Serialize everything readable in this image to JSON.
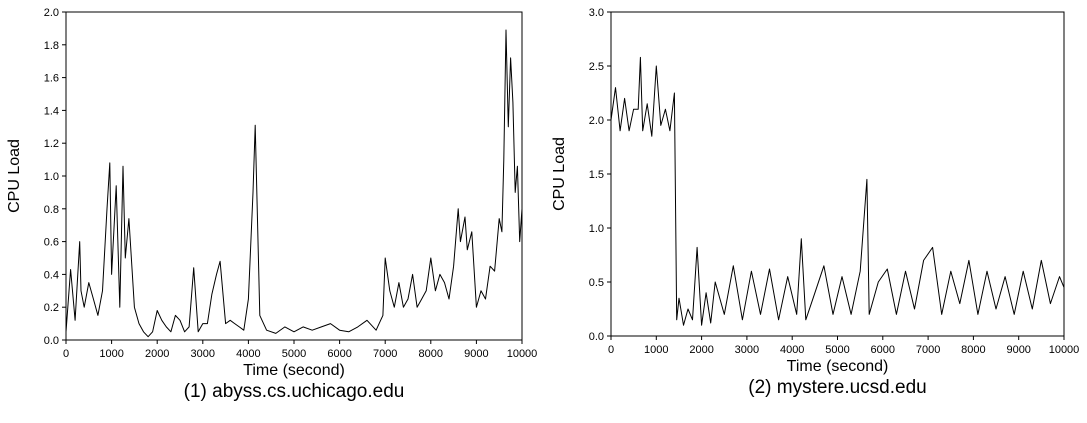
{
  "chart_data": [
    {
      "type": "line",
      "caption": "(1) abyss.cs.uchicago.edu",
      "xlabel": "Time (second)",
      "ylabel": "CPU Load",
      "xlim": [
        0,
        10000
      ],
      "ylim": [
        0,
        2.0
      ],
      "xticks": [
        0,
        1000,
        2000,
        3000,
        4000,
        5000,
        6000,
        7000,
        8000,
        9000,
        10000
      ],
      "yticks": [
        "0.0",
        "0.2",
        "0.4",
        "0.6",
        "0.8",
        "1.0",
        "1.2",
        "1.4",
        "1.6",
        "1.8",
        "2.0"
      ],
      "grid": false,
      "line_color": "#000000",
      "series": [
        {
          "x": [
            0,
            100,
            200,
            300,
            330,
            400,
            500,
            600,
            700,
            800,
            900,
            960,
            1000,
            1100,
            1180,
            1250,
            1300,
            1380,
            1500,
            1600,
            1700,
            1800,
            1900,
            2000,
            2100,
            2200,
            2300,
            2400,
            2500,
            2600,
            2700,
            2800,
            2900,
            3000,
            3100,
            3200,
            3300,
            3380,
            3500,
            3600,
            3700,
            3800,
            3900,
            4000,
            4100,
            4150,
            4250,
            4400,
            4600,
            4800,
            5000,
            5200,
            5400,
            5600,
            5800,
            6000,
            6200,
            6400,
            6600,
            6800,
            6950,
            7000,
            7100,
            7200,
            7300,
            7400,
            7500,
            7600,
            7700,
            7800,
            7900,
            8000,
            8100,
            8200,
            8300,
            8400,
            8500,
            8600,
            8650,
            8750,
            8800,
            8900,
            9000,
            9100,
            9200,
            9300,
            9400,
            9500,
            9560,
            9600,
            9650,
            9700,
            9750,
            9800,
            9850,
            9900,
            9950,
            10000
          ],
          "y": [
            0.05,
            0.43,
            0.12,
            0.6,
            0.3,
            0.2,
            0.35,
            0.25,
            0.15,
            0.3,
            0.8,
            1.08,
            0.4,
            0.94,
            0.2,
            1.06,
            0.5,
            0.74,
            0.2,
            0.1,
            0.05,
            0.02,
            0.05,
            0.18,
            0.12,
            0.08,
            0.05,
            0.15,
            0.12,
            0.05,
            0.08,
            0.44,
            0.05,
            0.1,
            0.1,
            0.28,
            0.4,
            0.48,
            0.1,
            0.12,
            0.1,
            0.08,
            0.06,
            0.25,
            0.9,
            1.31,
            0.15,
            0.06,
            0.04,
            0.08,
            0.05,
            0.08,
            0.06,
            0.08,
            0.1,
            0.06,
            0.05,
            0.08,
            0.12,
            0.06,
            0.15,
            0.5,
            0.3,
            0.2,
            0.35,
            0.2,
            0.25,
            0.4,
            0.2,
            0.25,
            0.3,
            0.5,
            0.3,
            0.4,
            0.35,
            0.25,
            0.45,
            0.8,
            0.6,
            0.75,
            0.55,
            0.66,
            0.2,
            0.3,
            0.25,
            0.45,
            0.42,
            0.74,
            0.66,
            1.1,
            1.89,
            1.3,
            1.72,
            1.45,
            0.9,
            1.06,
            0.6,
            0.8
          ]
        }
      ]
    },
    {
      "type": "line",
      "caption": "(2) mystere.ucsd.edu",
      "xlabel": "Time (second)",
      "ylabel": "CPU Load",
      "xlim": [
        0,
        10000
      ],
      "ylim": [
        0,
        3.0
      ],
      "xticks": [
        0,
        1000,
        2000,
        3000,
        4000,
        5000,
        6000,
        7000,
        8000,
        9000,
        10000
      ],
      "yticks": [
        "0.0",
        "0.5",
        "1.0",
        "1.5",
        "2.0",
        "2.5",
        "3.0"
      ],
      "grid": false,
      "line_color": "#000000",
      "series": [
        {
          "x": [
            0,
            100,
            200,
            300,
            400,
            500,
            600,
            650,
            700,
            800,
            900,
            1000,
            1100,
            1200,
            1300,
            1400,
            1450,
            1500,
            1600,
            1700,
            1800,
            1900,
            2000,
            2100,
            2200,
            2300,
            2500,
            2700,
            2900,
            3100,
            3300,
            3500,
            3700,
            3900,
            4100,
            4200,
            4300,
            4500,
            4700,
            4900,
            5100,
            5300,
            5500,
            5650,
            5700,
            5900,
            6100,
            6300,
            6500,
            6700,
            6900,
            7100,
            7300,
            7500,
            7700,
            7900,
            8100,
            8300,
            8500,
            8700,
            8900,
            9100,
            9300,
            9500,
            9700,
            9900,
            10000
          ],
          "y": [
            2.0,
            2.3,
            1.9,
            2.2,
            1.9,
            2.1,
            2.1,
            2.58,
            1.9,
            2.15,
            1.85,
            2.5,
            1.95,
            2.1,
            1.9,
            2.25,
            0.15,
            0.35,
            0.1,
            0.25,
            0.15,
            0.82,
            0.1,
            0.4,
            0.12,
            0.5,
            0.2,
            0.65,
            0.15,
            0.6,
            0.2,
            0.62,
            0.15,
            0.55,
            0.2,
            0.9,
            0.15,
            0.4,
            0.65,
            0.2,
            0.55,
            0.2,
            0.6,
            1.45,
            0.2,
            0.5,
            0.62,
            0.2,
            0.6,
            0.25,
            0.7,
            0.82,
            0.2,
            0.6,
            0.3,
            0.7,
            0.2,
            0.6,
            0.25,
            0.55,
            0.2,
            0.6,
            0.25,
            0.7,
            0.3,
            0.55,
            0.45
          ]
        }
      ]
    }
  ]
}
